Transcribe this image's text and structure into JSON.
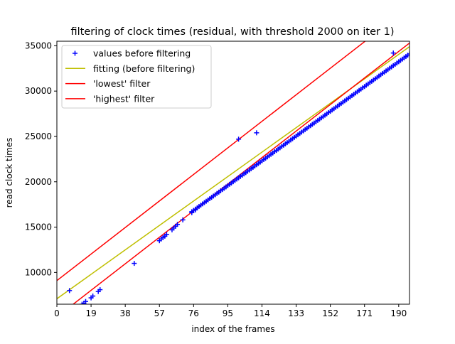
{
  "chart_data": {
    "type": "scatter",
    "title": "filtering of clock times (residual, with threshold 2000 on iter 1)",
    "xlabel": "index of the frames",
    "ylabel": "read clock times",
    "xlim": [
      0,
      196
    ],
    "ylim": [
      6500,
      35500
    ],
    "x_ticks": [
      0,
      19,
      38,
      57,
      76,
      95,
      114,
      133,
      152,
      171,
      190
    ],
    "x_tick_labels": [
      "0",
      "19",
      "38",
      "57",
      "76",
      "95",
      "114",
      "133",
      "152",
      "171",
      "190"
    ],
    "y_ticks": [
      10000,
      15000,
      20000,
      25000,
      30000,
      35000
    ],
    "y_tick_labels": [
      "10000",
      "15000",
      "20000",
      "25000",
      "30000",
      "35000"
    ],
    "grid": false,
    "legend_position": "upper-left",
    "series": [
      {
        "name": "values before filtering",
        "kind": "scatter",
        "marker": "+",
        "color": "#0000ff",
        "points": [
          [
            7,
            8000
          ],
          [
            14,
            6500
          ],
          [
            15,
            6600
          ],
          [
            16,
            6800
          ],
          [
            19,
            7200
          ],
          [
            20,
            7400
          ],
          [
            23,
            7900
          ],
          [
            24,
            8100
          ],
          [
            43,
            11000
          ],
          [
            57,
            13500
          ],
          [
            58,
            13700
          ],
          [
            59,
            13850
          ],
          [
            60,
            14000
          ],
          [
            61,
            14200
          ],
          [
            64,
            14700
          ],
          [
            65,
            14900
          ],
          [
            66,
            15100
          ],
          [
            67,
            15300
          ],
          [
            70,
            15800
          ],
          [
            75,
            16600
          ],
          [
            77,
            16900
          ],
          [
            101,
            24700
          ],
          [
            111,
            25400
          ],
          [
            187,
            34200
          ]
        ],
        "trend": {
          "x_start": 75,
          "y_start": 16700,
          "x_end": 196,
          "y_end": 34100,
          "step": 1
        }
      },
      {
        "name": "fitting (before filtering)",
        "kind": "line",
        "color": "#bfbf00",
        "x": [
          0,
          196
        ],
        "y": [
          7100,
          34900
        ]
      },
      {
        "name": "'lowest' filter",
        "kind": "line",
        "color": "#ff0000",
        "x": [
          0,
          196
        ],
        "y": [
          5100,
          35300
        ]
      },
      {
        "name": "'highest' filter",
        "kind": "line",
        "color": "#ff0000",
        "x": [
          0,
          196
        ],
        "y": [
          9100,
          39300
        ]
      }
    ]
  }
}
